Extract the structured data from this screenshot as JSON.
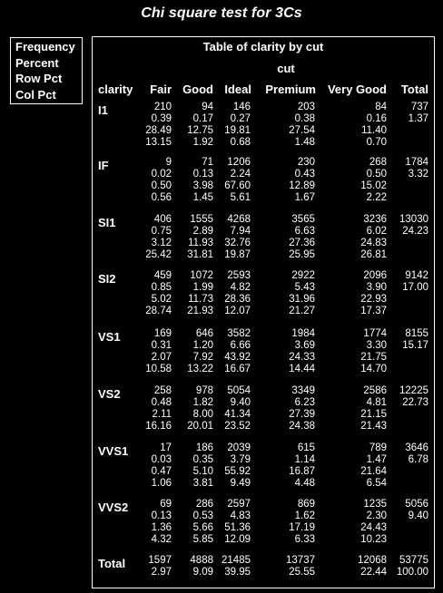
{
  "page_title": "Chi square test for 3Cs",
  "legend": [
    "Frequency",
    "Percent",
    "Row Pct",
    "Col Pct"
  ],
  "table": {
    "title": "Table of clarity by cut",
    "column_variable": "cut",
    "row_header": "clarity",
    "columns": [
      "Fair",
      "Good",
      "Ideal",
      "Premium",
      "Very Good",
      "Total"
    ],
    "rows": [
      {
        "label": "I1",
        "lines": [
          [
            "210",
            "94",
            "146",
            "203",
            "84",
            "737"
          ],
          [
            "0.39",
            "0.17",
            "0.27",
            "0.38",
            "0.16",
            "1.37"
          ],
          [
            "28.49",
            "12.75",
            "19.81",
            "27.54",
            "11.40",
            ""
          ],
          [
            "13.15",
            "1.92",
            "0.68",
            "1.48",
            "0.70",
            ""
          ]
        ]
      },
      {
        "label": "IF",
        "lines": [
          [
            "9",
            "71",
            "1206",
            "230",
            "268",
            "1784"
          ],
          [
            "0.02",
            "0.13",
            "2.24",
            "0.43",
            "0.50",
            "3.32"
          ],
          [
            "0.50",
            "3.98",
            "67.60",
            "12.89",
            "15.02",
            ""
          ],
          [
            "0.56",
            "1.45",
            "5.61",
            "1.67",
            "2.22",
            ""
          ]
        ]
      },
      {
        "label": "SI1",
        "lines": [
          [
            "406",
            "1555",
            "4268",
            "3565",
            "3236",
            "13030"
          ],
          [
            "0.75",
            "2.89",
            "7.94",
            "6.63",
            "6.02",
            "24.23"
          ],
          [
            "3.12",
            "11.93",
            "32.76",
            "27.36",
            "24.83",
            ""
          ],
          [
            "25.42",
            "31.81",
            "19.87",
            "25.95",
            "26.81",
            ""
          ]
        ]
      },
      {
        "label": "SI2",
        "lines": [
          [
            "459",
            "1072",
            "2593",
            "2922",
            "2096",
            "9142"
          ],
          [
            "0.85",
            "1.99",
            "4.82",
            "5.43",
            "3.90",
            "17.00"
          ],
          [
            "5.02",
            "11.73",
            "28.36",
            "31.96",
            "22.93",
            ""
          ],
          [
            "28.74",
            "21.93",
            "12.07",
            "21.27",
            "17.37",
            ""
          ]
        ]
      },
      {
        "label": "VS1",
        "lines": [
          [
            "169",
            "646",
            "3582",
            "1984",
            "1774",
            "8155"
          ],
          [
            "0.31",
            "1.20",
            "6.66",
            "3.69",
            "3.30",
            "15.17"
          ],
          [
            "2.07",
            "7.92",
            "43.92",
            "24.33",
            "21.75",
            ""
          ],
          [
            "10.58",
            "13.22",
            "16.67",
            "14.44",
            "14.70",
            ""
          ]
        ]
      },
      {
        "label": "VS2",
        "lines": [
          [
            "258",
            "978",
            "5054",
            "3349",
            "2586",
            "12225"
          ],
          [
            "0.48",
            "1.82",
            "9.40",
            "6.23",
            "4.81",
            "22.73"
          ],
          [
            "2.11",
            "8.00",
            "41.34",
            "27.39",
            "21.15",
            ""
          ],
          [
            "16.16",
            "20.01",
            "23.52",
            "24.38",
            "21.43",
            ""
          ]
        ]
      },
      {
        "label": "VVS1",
        "lines": [
          [
            "17",
            "186",
            "2039",
            "615",
            "789",
            "3646"
          ],
          [
            "0.03",
            "0.35",
            "3.79",
            "1.14",
            "1.47",
            "6.78"
          ],
          [
            "0.47",
            "5.10",
            "55.92",
            "16.87",
            "21.64",
            ""
          ],
          [
            "1.06",
            "3.81",
            "9.49",
            "4.48",
            "6.54",
            ""
          ]
        ]
      },
      {
        "label": "VVS2",
        "lines": [
          [
            "69",
            "286",
            "2597",
            "869",
            "1235",
            "5056"
          ],
          [
            "0.13",
            "0.53",
            "4.83",
            "1.62",
            "2.30",
            "9.40"
          ],
          [
            "1.36",
            "5.66",
            "51.36",
            "17.19",
            "24.43",
            ""
          ],
          [
            "4.32",
            "5.85",
            "12.09",
            "6.33",
            "10.23",
            ""
          ]
        ]
      },
      {
        "label": "Total",
        "lines": [
          [
            "1597",
            "4888",
            "21485",
            "13737",
            "12068",
            "53775"
          ],
          [
            "2.97",
            "9.09",
            "39.95",
            "25.55",
            "22.44",
            "100.00"
          ]
        ]
      }
    ]
  }
}
